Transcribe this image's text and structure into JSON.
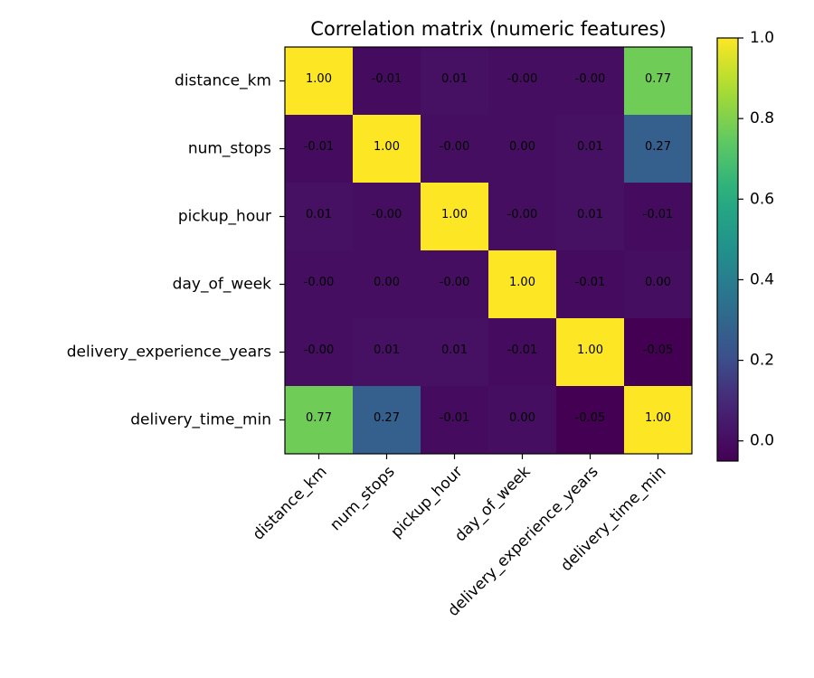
{
  "chart_data": {
    "type": "heatmap",
    "title": "Correlation matrix (numeric features)",
    "xlabel": "",
    "ylabel": "",
    "rows": [
      "distance_km",
      "num_stops",
      "pickup_hour",
      "day_of_week",
      "delivery_experience_years",
      "delivery_time_min"
    ],
    "columns": [
      "distance_km",
      "num_stops",
      "pickup_hour",
      "day_of_week",
      "delivery_experience_years",
      "delivery_time_min"
    ],
    "values": [
      [
        1.0,
        -0.01,
        0.01,
        -0.0,
        -0.0,
        0.77
      ],
      [
        -0.01,
        1.0,
        -0.0,
        0.0,
        0.01,
        0.27
      ],
      [
        0.01,
        -0.0,
        1.0,
        -0.0,
        0.01,
        -0.01
      ],
      [
        -0.0,
        0.0,
        -0.0,
        1.0,
        -0.01,
        0.0
      ],
      [
        -0.0,
        0.01,
        0.01,
        -0.01,
        1.0,
        -0.05
      ],
      [
        0.77,
        0.27,
        -0.01,
        0.0,
        -0.05,
        1.0
      ]
    ],
    "cell_labels": [
      [
        "1.00",
        "-0.01",
        "0.01",
        "-0.00",
        "-0.00",
        "0.77"
      ],
      [
        "-0.01",
        "1.00",
        "-0.00",
        "0.00",
        "0.01",
        "0.27"
      ],
      [
        "0.01",
        "-0.00",
        "1.00",
        "-0.00",
        "0.01",
        "-0.01"
      ],
      [
        "-0.00",
        "0.00",
        "-0.00",
        "1.00",
        "-0.01",
        "0.00"
      ],
      [
        "-0.00",
        "0.01",
        "0.01",
        "-0.01",
        "1.00",
        "-0.05"
      ],
      [
        "0.77",
        "0.27",
        "-0.01",
        "0.00",
        "-0.05",
        "1.00"
      ]
    ],
    "colormap": "viridis",
    "color_range": [
      -0.05,
      1.0
    ],
    "colorbar": {
      "ticks": [
        0.0,
        0.2,
        0.4,
        0.6,
        0.8,
        1.0
      ],
      "tick_labels": [
        "0.0",
        "0.2",
        "0.4",
        "0.6",
        "0.8",
        "1.0"
      ]
    },
    "grid": false,
    "legend": "none"
  }
}
